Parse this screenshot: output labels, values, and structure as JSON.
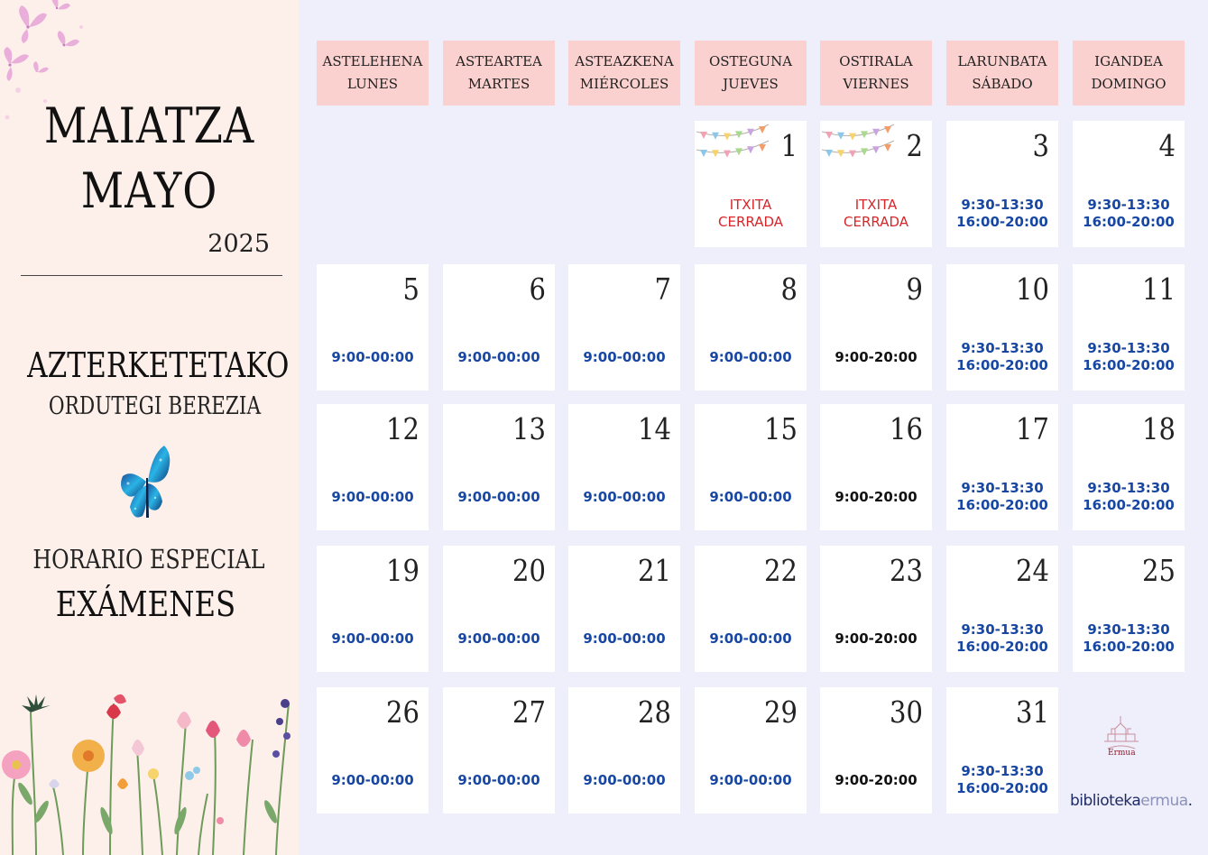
{
  "sidebar": {
    "month_eu": "MAIATZA",
    "month_es": "MAYO",
    "year": "2025",
    "title_eu_1": "AZTERKETETAKO",
    "title_eu_2": "ORDUTEGI BEREZIA",
    "title_es_1": "HORARIO ESPECIAL",
    "title_es_2": "EXÁMENES",
    "icons": [
      "butterflies-top-icon",
      "blue-butterfly-icon",
      "wildflowers-illustration"
    ]
  },
  "weekdays": [
    {
      "eu": "ASTELEHENA",
      "es": "LUNES"
    },
    {
      "eu": "ASTEARTEA",
      "es": "MARTES"
    },
    {
      "eu": "ASTEAZKENA",
      "es": "MIÉRCOLES"
    },
    {
      "eu": "OSTEGUNA",
      "es": "JUEVES"
    },
    {
      "eu": "OSTIRALA",
      "es": "VIERNES"
    },
    {
      "eu": "LARUNBATA",
      "es": "SÁBADO"
    },
    {
      "eu": "IGANDEA",
      "es": "DOMINGO"
    }
  ],
  "days": [
    {
      "day": "1",
      "weekday": 3,
      "week": 0,
      "lines": [
        "ITXITA",
        "CERRADA"
      ],
      "style": "red",
      "bunting": true
    },
    {
      "day": "2",
      "weekday": 4,
      "week": 0,
      "lines": [
        "ITXITA",
        "CERRADA"
      ],
      "style": "red",
      "bunting": true
    },
    {
      "day": "3",
      "weekday": 5,
      "week": 0,
      "lines": [
        "9:30-13:30",
        "16:00-20:00"
      ],
      "style": "blue"
    },
    {
      "day": "4",
      "weekday": 6,
      "week": 0,
      "lines": [
        "9:30-13:30",
        "16:00-20:00"
      ],
      "style": "blue"
    },
    {
      "day": "5",
      "weekday": 0,
      "week": 1,
      "lines": [
        "9:00-00:00"
      ],
      "style": "blue"
    },
    {
      "day": "6",
      "weekday": 1,
      "week": 1,
      "lines": [
        "9:00-00:00"
      ],
      "style": "blue"
    },
    {
      "day": "7",
      "weekday": 2,
      "week": 1,
      "lines": [
        "9:00-00:00"
      ],
      "style": "blue"
    },
    {
      "day": "8",
      "weekday": 3,
      "week": 1,
      "lines": [
        "9:00-00:00"
      ],
      "style": "blue"
    },
    {
      "day": "9",
      "weekday": 4,
      "week": 1,
      "lines": [
        "9:00-20:00"
      ],
      "style": "black"
    },
    {
      "day": "10",
      "weekday": 5,
      "week": 1,
      "lines": [
        "9:30-13:30",
        "16:00-20:00"
      ],
      "style": "blue"
    },
    {
      "day": "11",
      "weekday": 6,
      "week": 1,
      "lines": [
        "9:30-13:30",
        "16:00-20:00"
      ],
      "style": "blue"
    },
    {
      "day": "12",
      "weekday": 0,
      "week": 2,
      "lines": [
        "9:00-00:00"
      ],
      "style": "blue"
    },
    {
      "day": "13",
      "weekday": 1,
      "week": 2,
      "lines": [
        "9:00-00:00"
      ],
      "style": "blue"
    },
    {
      "day": "14",
      "weekday": 2,
      "week": 2,
      "lines": [
        "9:00-00:00"
      ],
      "style": "blue"
    },
    {
      "day": "15",
      "weekday": 3,
      "week": 2,
      "lines": [
        "9:00-00:00"
      ],
      "style": "blue"
    },
    {
      "day": "16",
      "weekday": 4,
      "week": 2,
      "lines": [
        "9:00-20:00"
      ],
      "style": "black"
    },
    {
      "day": "17",
      "weekday": 5,
      "week": 2,
      "lines": [
        "9:30-13:30",
        "16:00-20:00"
      ],
      "style": "blue"
    },
    {
      "day": "18",
      "weekday": 6,
      "week": 2,
      "lines": [
        "9:30-13:30",
        "16:00-20:00"
      ],
      "style": "blue"
    },
    {
      "day": "19",
      "weekday": 0,
      "week": 3,
      "lines": [
        "9:00-00:00"
      ],
      "style": "blue"
    },
    {
      "day": "20",
      "weekday": 1,
      "week": 3,
      "lines": [
        "9:00-00:00"
      ],
      "style": "blue"
    },
    {
      "day": "21",
      "weekday": 2,
      "week": 3,
      "lines": [
        "9:00-00:00"
      ],
      "style": "blue"
    },
    {
      "day": "22",
      "weekday": 3,
      "week": 3,
      "lines": [
        "9:00-00:00"
      ],
      "style": "blue"
    },
    {
      "day": "23",
      "weekday": 4,
      "week": 3,
      "lines": [
        "9:00-20:00"
      ],
      "style": "black"
    },
    {
      "day": "24",
      "weekday": 5,
      "week": 3,
      "lines": [
        "9:30-13:30",
        "16:00-20:00"
      ],
      "style": "blue"
    },
    {
      "day": "25",
      "weekday": 6,
      "week": 3,
      "lines": [
        "9:30-13:30",
        "16:00-20:00"
      ],
      "style": "blue"
    },
    {
      "day": "26",
      "weekday": 0,
      "week": 4,
      "lines": [
        "9:00-00:00"
      ],
      "style": "blue"
    },
    {
      "day": "27",
      "weekday": 1,
      "week": 4,
      "lines": [
        "9:00-00:00"
      ],
      "style": "blue"
    },
    {
      "day": "28",
      "weekday": 2,
      "week": 4,
      "lines": [
        "9:00-00:00"
      ],
      "style": "blue"
    },
    {
      "day": "29",
      "weekday": 3,
      "week": 4,
      "lines": [
        "9:00-00:00"
      ],
      "style": "blue"
    },
    {
      "day": "30",
      "weekday": 4,
      "week": 4,
      "lines": [
        "9:00-20:00"
      ],
      "style": "black"
    },
    {
      "day": "31",
      "weekday": 5,
      "week": 4,
      "lines": [
        "9:30-13:30",
        "16:00-20:00"
      ],
      "style": "blue"
    }
  ],
  "logo": {
    "brand_strong": "biblioteka",
    "brand_light": "ermua",
    "crest_label": "Ermua",
    "icon": "ermua-crest-icon"
  },
  "colors": {
    "sidebar_bg": "#fdf0ea",
    "main_bg": "#efeefb",
    "header_bg": "#fbd1d0",
    "hours_blue": "#1847a3",
    "closed_red": "#d7262a"
  }
}
